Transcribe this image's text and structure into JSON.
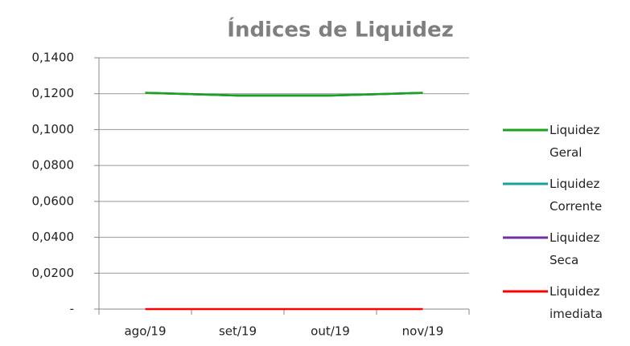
{
  "chart_data": {
    "type": "line",
    "title": "Índices de Liquidez",
    "categories": [
      "ago/19",
      "set/19",
      "out/19",
      "nov/19"
    ],
    "series": [
      {
        "name": "Liquidez Geral",
        "color": "#1aa31a",
        "values": [
          0.1205,
          0.119,
          0.119,
          0.1205
        ]
      },
      {
        "name": "Liquidez Corrente",
        "color": "#17a2a2",
        "values": [
          0.1205,
          0.119,
          0.119,
          0.1205
        ]
      },
      {
        "name": "Liquidez Seca",
        "color": "#7030a0",
        "values": [
          0.1205,
          0.119,
          0.119,
          0.1205
        ]
      },
      {
        "name": "Liquidez imediata",
        "color": "#ff0000",
        "values": [
          0,
          0,
          0,
          0
        ]
      }
    ],
    "ylim": [
      0,
      0.14
    ],
    "yticks": [
      {
        "value": 0,
        "label": "-"
      },
      {
        "value": 0.02,
        "label": "0,0200"
      },
      {
        "value": 0.04,
        "label": "0,0400"
      },
      {
        "value": 0.06,
        "label": "0,0600"
      },
      {
        "value": 0.08,
        "label": "0,0800"
      },
      {
        "value": 0.1,
        "label": "0,1000"
      },
      {
        "value": 0.12,
        "label": "0,1200"
      },
      {
        "value": 0.14,
        "label": "0,1400"
      }
    ],
    "grid": true,
    "legend": "right"
  }
}
